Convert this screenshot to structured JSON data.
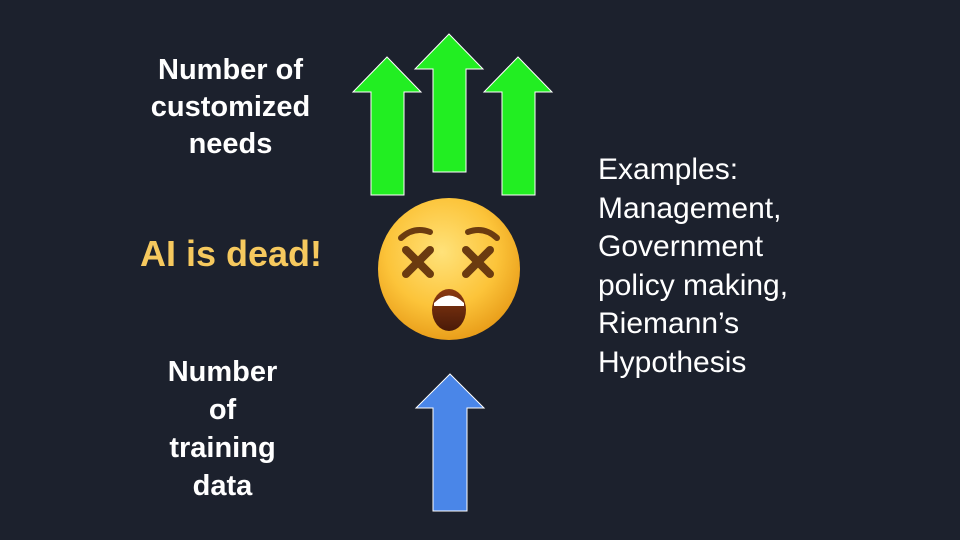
{
  "slide": {
    "background": "#1c212d",
    "needs_label_lines": [
      "Number of",
      "customized",
      "needs"
    ],
    "headline": "AI is dead!",
    "training_label_lines": [
      "Number",
      "of",
      "training",
      "data"
    ],
    "examples_lines": [
      "Examples:",
      "Management,",
      "Government",
      "policy making,",
      "Riemann’s",
      "Hypothesis"
    ],
    "colors": {
      "up_arrow_green": "#22ee22",
      "up_arrow_blue": "#4a86e8",
      "headline_yellow": "#f6c95e",
      "text_white": "#ffffff"
    },
    "icons": {
      "up_arrows": "arrow-up-icon",
      "emoji": "dizzy-face-emoji-icon"
    }
  }
}
